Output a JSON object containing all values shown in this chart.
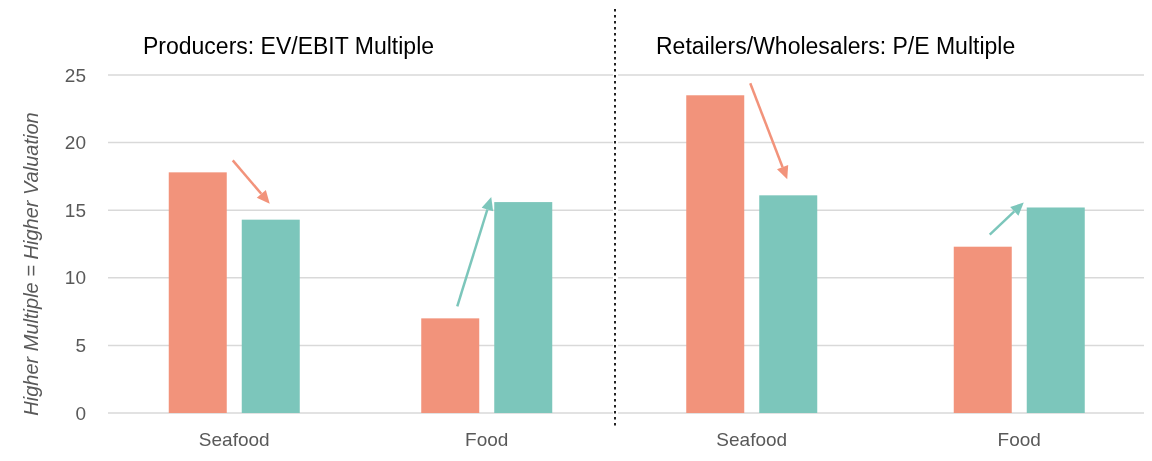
{
  "chart_data": [
    {
      "type": "bar",
      "title": "Producers: EV/EBIT Multiple",
      "ylabel": "Higher Multiple = Higher Valuation",
      "categories": [
        "Seafood",
        "Food"
      ],
      "series": [
        {
          "color": "#f2937b",
          "values": [
            17.8,
            7.0
          ]
        },
        {
          "color": "#7cc6bb",
          "values": [
            14.3,
            15.6
          ]
        }
      ],
      "ylim": [
        0,
        25
      ],
      "yticks": [
        0,
        5,
        10,
        15,
        20,
        25
      ],
      "grid": "y"
    },
    {
      "type": "bar",
      "title": "Retailers/Wholesalers: P/E Multiple",
      "categories": [
        "Seafood",
        "Food"
      ],
      "series": [
        {
          "color": "#f2937b",
          "values": [
            23.5,
            12.3
          ]
        },
        {
          "color": "#7cc6bb",
          "values": [
            16.1,
            15.2
          ]
        }
      ],
      "ylim": [
        0,
        25
      ],
      "yticks": [
        0,
        5,
        10,
        15,
        20,
        25
      ],
      "grid": "y",
      "tick_labels": "x"
    }
  ]
}
